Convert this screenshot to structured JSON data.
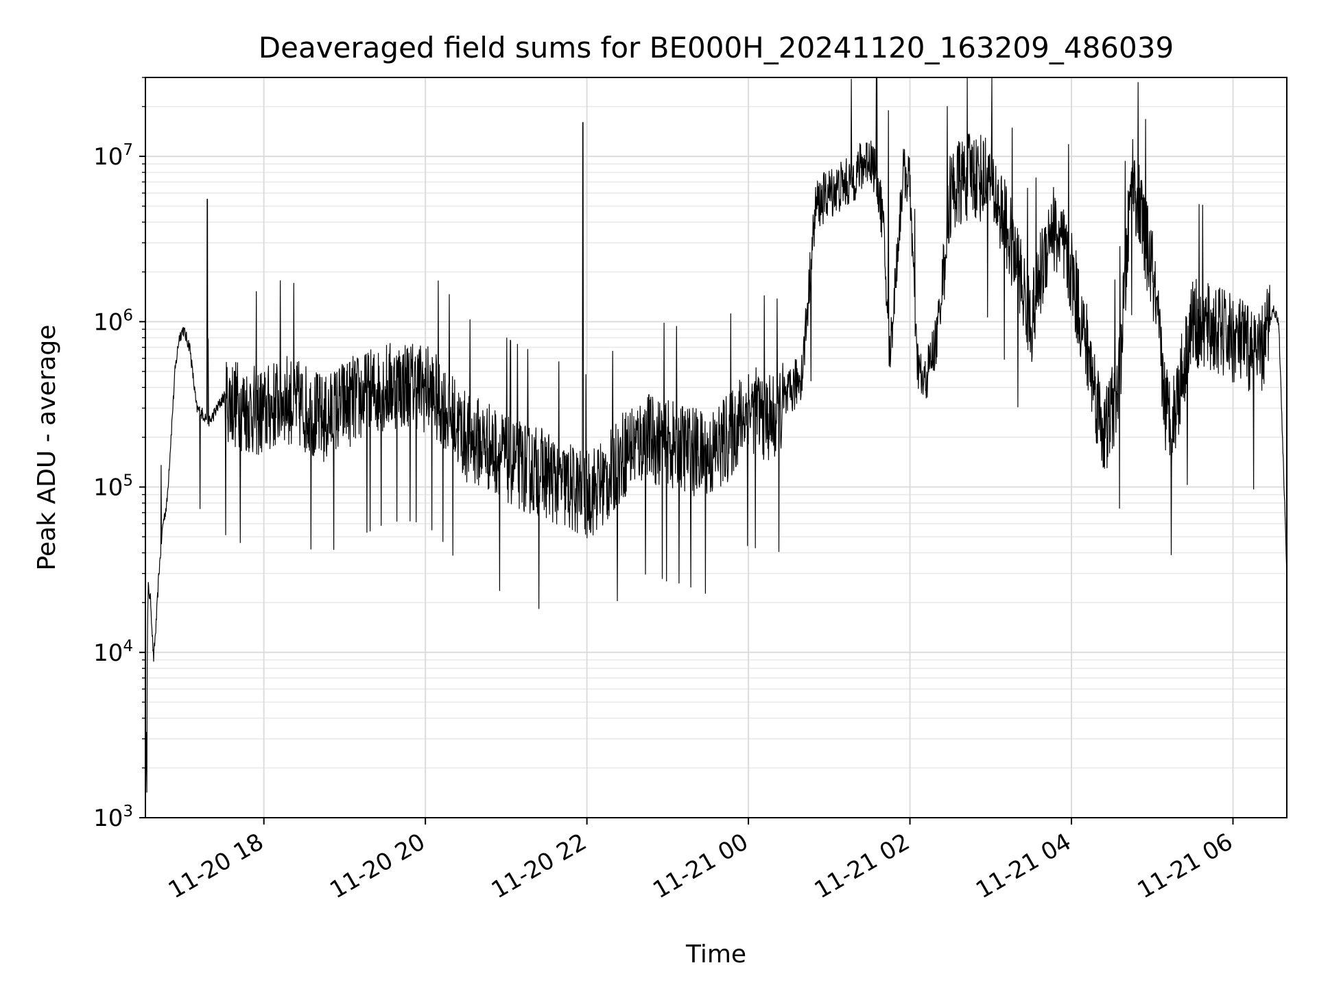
{
  "chart_data": {
    "type": "line",
    "title": "Deaveraged field sums for BE000H_20241120_163209_486039",
    "xlabel": "Time",
    "ylabel": "Peak ADU - average",
    "y_scale": "log",
    "ylim": [
      1000,
      30000000
    ],
    "xlim": [
      "2024-11-20 16:32",
      "2024-11-21 06:40"
    ],
    "grid": true,
    "line_color": "#000000",
    "x_ticks": [
      {
        "t": "2024-11-20 18:00",
        "label": "11-20 18"
      },
      {
        "t": "2024-11-20 20:00",
        "label": "11-20 20"
      },
      {
        "t": "2024-11-20 22:00",
        "label": "11-20 22"
      },
      {
        "t": "2024-11-21 00:00",
        "label": "11-21 00"
      },
      {
        "t": "2024-11-21 02:00",
        "label": "11-21 02"
      },
      {
        "t": "2024-11-21 04:00",
        "label": "11-21 04"
      },
      {
        "t": "2024-11-21 06:00",
        "label": "11-21 06"
      }
    ],
    "y_ticks": [
      {
        "v": 1000,
        "base": "10",
        "exp": "3"
      },
      {
        "v": 10000,
        "base": "10",
        "exp": "4"
      },
      {
        "v": 100000,
        "base": "10",
        "exp": "5"
      },
      {
        "v": 1000000,
        "base": "10",
        "exp": "6"
      },
      {
        "v": 10000000,
        "base": "10",
        "exp": "7"
      }
    ],
    "series": [
      {
        "x": [
          "2024-11-20 16:32",
          "2024-11-20 16:34",
          "2024-11-20 16:36",
          "2024-11-20 16:38",
          "2024-11-20 16:40",
          "2024-11-20 16:42",
          "2024-11-20 16:45",
          "2024-11-20 16:48",
          "2024-11-20 16:51",
          "2024-11-20 16:54",
          "2024-11-20 16:57",
          "2024-11-20 17:00",
          "2024-11-20 17:05",
          "2024-11-20 17:10",
          "2024-11-20 17:20",
          "2024-11-20 17:30",
          "2024-11-20 17:45",
          "2024-11-20 18:00",
          "2024-11-20 18:15",
          "2024-11-20 18:30",
          "2024-11-20 18:45",
          "2024-11-20 19:00",
          "2024-11-20 19:15",
          "2024-11-20 19:30",
          "2024-11-20 19:45",
          "2024-11-20 20:00",
          "2024-11-20 20:15",
          "2024-11-20 20:30",
          "2024-11-20 20:45",
          "2024-11-20 21:00",
          "2024-11-20 21:15",
          "2024-11-20 21:30",
          "2024-11-20 21:45",
          "2024-11-20 22:00",
          "2024-11-20 22:15",
          "2024-11-20 22:30",
          "2024-11-20 22:45",
          "2024-11-20 23:00",
          "2024-11-20 23:15",
          "2024-11-20 23:30",
          "2024-11-20 23:45",
          "2024-11-21 00:00",
          "2024-11-21 00:20",
          "2024-11-21 00:30",
          "2024-11-21 00:40",
          "2024-11-21 00:50",
          "2024-11-21 01:00",
          "2024-11-21 01:15",
          "2024-11-21 01:30",
          "2024-11-21 01:35",
          "2024-11-21 01:40",
          "2024-11-21 01:45",
          "2024-11-21 01:55",
          "2024-11-21 02:00",
          "2024-11-21 02:05",
          "2024-11-21 02:10",
          "2024-11-21 02:20",
          "2024-11-21 02:30",
          "2024-11-21 02:45",
          "2024-11-21 03:00",
          "2024-11-21 03:15",
          "2024-11-21 03:30",
          "2024-11-21 03:45",
          "2024-11-21 04:00",
          "2024-11-21 04:15",
          "2024-11-21 04:20",
          "2024-11-21 04:25",
          "2024-11-21 04:30",
          "2024-11-21 04:35",
          "2024-11-21 04:45",
          "2024-11-21 05:00",
          "2024-11-21 05:10",
          "2024-11-21 05:15",
          "2024-11-21 05:30",
          "2024-11-21 05:45",
          "2024-11-21 06:00",
          "2024-11-21 06:10",
          "2024-11-21 06:20",
          "2024-11-21 06:30",
          "2024-11-21 06:34",
          "2024-11-21 06:38",
          "2024-11-21 06:40"
        ],
        "y": [
          1000,
          25000,
          20000,
          9000,
          15000,
          30000,
          60000,
          80000,
          200000,
          500000,
          800000,
          900000,
          700000,
          300000,
          250000,
          350000,
          300000,
          280000,
          350000,
          300000,
          250000,
          320000,
          350000,
          400000,
          420000,
          400000,
          300000,
          200000,
          180000,
          150000,
          130000,
          120000,
          100000,
          90000,
          110000,
          170000,
          200000,
          180000,
          170000,
          150000,
          200000,
          300000,
          250000,
          350000,
          500000,
          5000000,
          6000000,
          7000000,
          10000000,
          8000000,
          4000000,
          600000,
          8000000,
          7000000,
          600000,
          400000,
          800000,
          6000000,
          8000000,
          7000000,
          3000000,
          1000000,
          4000000,
          2000000,
          500000,
          300000,
          200000,
          300000,
          400000,
          8000000,
          2000000,
          300000,
          250000,
          1000000,
          900000,
          800000,
          700000,
          600000,
          1200000,
          1000000,
          100000,
          30000
        ]
      }
    ],
    "spikes": [
      {
        "t": "2024-11-20 17:18",
        "v": 5500000
      },
      {
        "t": "2024-11-20 21:57",
        "v": 16000000
      },
      {
        "t": "2024-11-21 01:44",
        "v": 19000000
      }
    ]
  }
}
